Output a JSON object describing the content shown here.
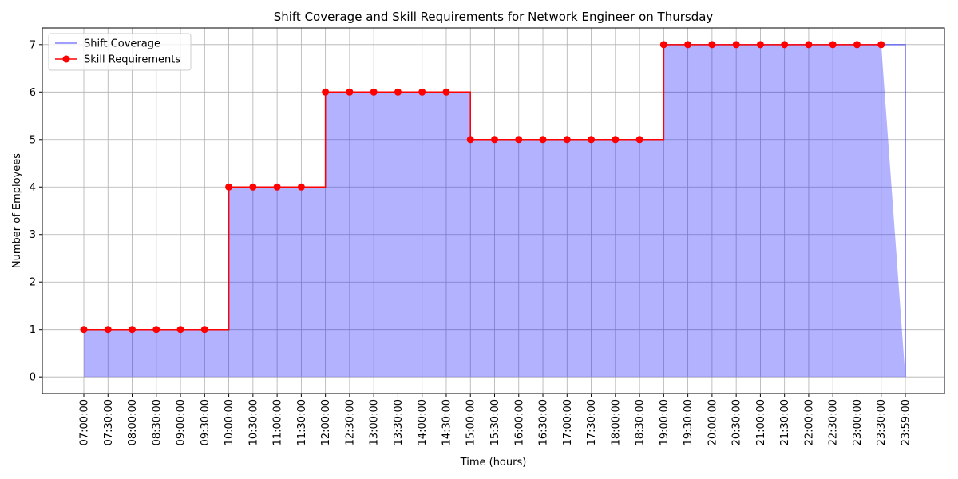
{
  "chart_data": {
    "type": "step",
    "title": "Shift Coverage and Skill Requirements for Network Engineer on Thursday",
    "xlabel": "Time (hours)",
    "ylabel": "Number of Employees",
    "categories": [
      "07:00:00",
      "07:30:00",
      "08:00:00",
      "08:30:00",
      "09:00:00",
      "09:30:00",
      "10:00:00",
      "10:30:00",
      "11:00:00",
      "11:30:00",
      "12:00:00",
      "12:30:00",
      "13:00:00",
      "13:30:00",
      "14:00:00",
      "14:30:00",
      "15:00:00",
      "15:30:00",
      "16:00:00",
      "16:30:00",
      "17:00:00",
      "17:30:00",
      "18:00:00",
      "18:30:00",
      "19:00:00",
      "19:30:00",
      "20:00:00",
      "20:30:00",
      "21:00:00",
      "21:30:00",
      "22:00:00",
      "22:30:00",
      "23:00:00",
      "23:30:00",
      "23:59:00"
    ],
    "series": [
      {
        "name": "Shift Coverage",
        "color": "#0000ff",
        "fill": true,
        "values": [
          1,
          1,
          1,
          1,
          1,
          1,
          4,
          4,
          4,
          4,
          6,
          6,
          6,
          6,
          6,
          6,
          5,
          5,
          5,
          5,
          5,
          5,
          5,
          5,
          7,
          7,
          7,
          7,
          7,
          7,
          7,
          7,
          7,
          7,
          0
        ]
      },
      {
        "name": "Skill Requirements",
        "color": "#ff0000",
        "markers": true,
        "values": [
          1,
          1,
          1,
          1,
          1,
          1,
          4,
          4,
          4,
          4,
          6,
          6,
          6,
          6,
          6,
          6,
          5,
          5,
          5,
          5,
          5,
          5,
          5,
          5,
          7,
          7,
          7,
          7,
          7,
          7,
          7,
          7,
          7,
          7,
          null
        ]
      }
    ],
    "ylim": [
      -0.35,
      7.35
    ],
    "yticks": [
      0,
      1,
      2,
      3,
      4,
      5,
      6,
      7
    ],
    "grid": true,
    "legend": "upper left"
  }
}
